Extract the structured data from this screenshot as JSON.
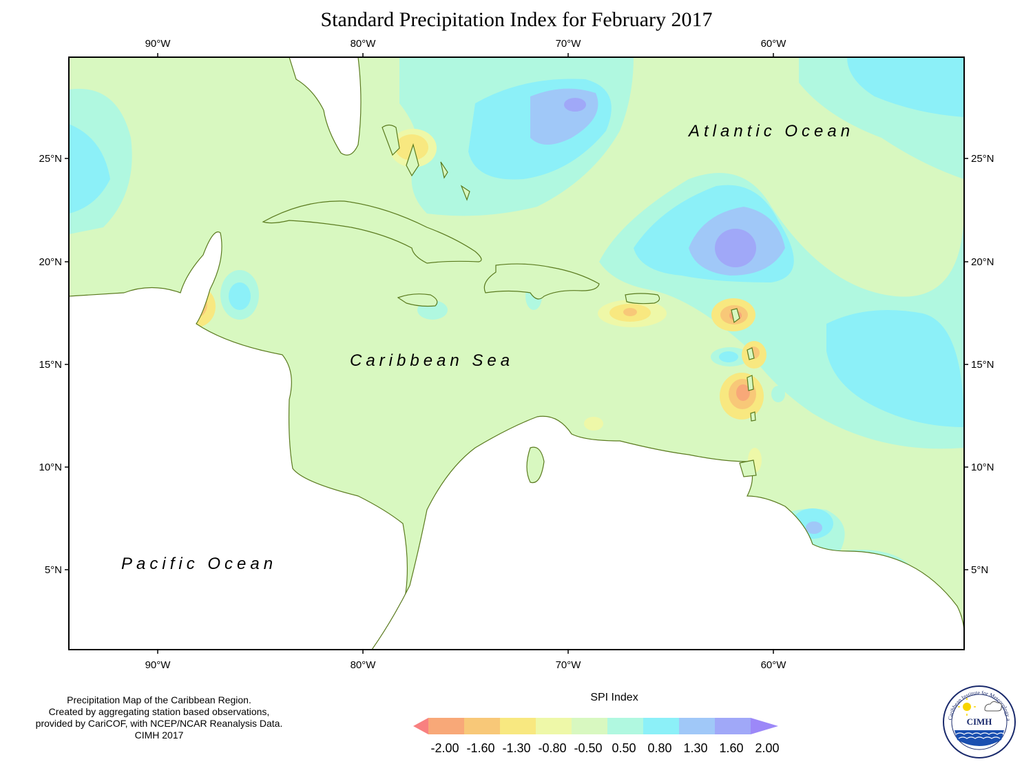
{
  "title": "Standard Precipitation Index for February 2017",
  "axes": {
    "longitude_labels": [
      "90°W",
      "80°W",
      "70°W",
      "60°W"
    ],
    "latitude_labels": [
      "25°N",
      "20°N",
      "15°N",
      "10°N",
      "5°N"
    ]
  },
  "labels": {
    "atlantic": "Atlantic Ocean",
    "caribbean": "Caribbean Sea",
    "pacific": "Pacific Ocean"
  },
  "credits": [
    "Precipitation Map of the Caribbean Region.",
    "Created by aggregating station based observations,",
    "provided by CariCOF, with NCEP/NCAR Reanalysis Data.",
    "CIMH 2017"
  ],
  "legend": {
    "title": "SPI Index",
    "values": [
      "-2.00",
      "-1.60",
      "-1.30",
      "-0.80",
      "-0.50",
      "0.50",
      "0.80",
      "1.30",
      "1.60",
      "2.00"
    ],
    "colors": [
      "#f88080",
      "#f8a878",
      "#f8c878",
      "#f8e880",
      "#eef8a8",
      "#d8f8c0",
      "#b0f8e0",
      "#8cf0f8",
      "#a0c8f8",
      "#a0a8f8",
      "#9c88f8"
    ]
  },
  "logo": {
    "caption": "CIMH",
    "ring_text": "Caribbean Institute for Meteorology and Hydrology"
  }
}
